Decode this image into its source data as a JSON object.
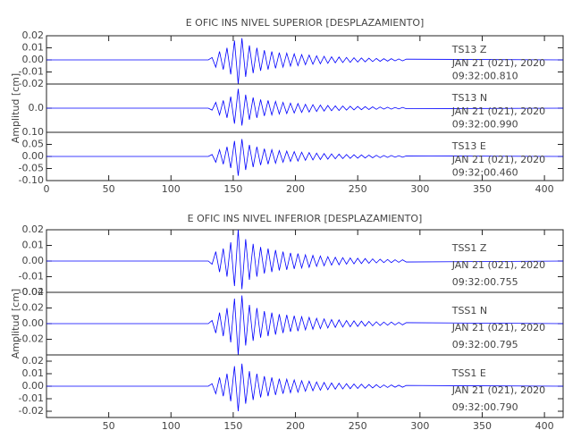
{
  "chart_data": [
    {
      "type": "line",
      "title": "E OFIC INS NIVEL SUPERIOR [DESPLAZAMIENTO]",
      "ylabel": "Amplitud [cm]",
      "xlim": [
        0,
        415
      ],
      "xticks": [
        0,
        50,
        100,
        150,
        200,
        250,
        300,
        350,
        400
      ],
      "x": [
        0,
        130,
        133,
        136,
        139,
        142,
        145,
        148,
        151,
        154,
        157,
        160,
        163,
        166,
        169,
        172,
        175,
        178,
        181,
        184,
        187,
        190,
        193,
        196,
        199,
        202,
        205,
        208,
        211,
        214,
        217,
        220,
        223,
        226,
        229,
        232,
        235,
        238,
        241,
        244,
        247,
        250,
        253,
        256,
        259,
        262,
        265,
        268,
        271,
        274,
        277,
        280,
        283,
        286,
        289,
        415
      ],
      "panels": [
        {
          "label": "TS13   Z",
          "date": "JAN 21 (021), 2020",
          "time": "09:32:00.810",
          "color": "#0000ff",
          "ylim": [
            -0.02,
            0.02
          ],
          "yticks": [
            0.02,
            0.01,
            {
              "value": 0,
              "label": "0.00"
            },
            -0.01,
            -0.02
          ],
          "values": [
            0,
            0,
            0.002,
            -0.006,
            0.007,
            -0.008,
            0.01,
            -0.012,
            0.016,
            -0.02,
            0.018,
            -0.014,
            0.012,
            -0.011,
            0.01,
            -0.009,
            0.008,
            -0.008,
            0.007,
            -0.007,
            0.006,
            -0.006,
            0.0056,
            -0.0052,
            0.005,
            -0.0048,
            0.0044,
            -0.004,
            0.004,
            -0.0036,
            0.0034,
            -0.0032,
            0.003,
            -0.0028,
            0.0026,
            -0.0024,
            0.0024,
            -0.0022,
            0.002,
            -0.002,
            0.0018,
            -0.0018,
            0.0016,
            -0.0016,
            0.0014,
            -0.0014,
            0.0012,
            -0.0012,
            0.001,
            -0.001,
            0.001,
            -0.0008,
            0.0008,
            -0.0008,
            0.0006,
            0
          ]
        },
        {
          "label": "TS13   N",
          "date": "JAN 21 (021), 2020",
          "time": "09:32:00.990",
          "color": "#0000ff",
          "ylim": [
            -0.1,
            0.1
          ],
          "yticks": [
            {
              "value": 0,
              "label": "0.0"
            }
          ],
          "values": [
            0,
            0,
            -0.008,
            0.024,
            -0.028,
            0.032,
            -0.04,
            0.048,
            -0.064,
            0.08,
            -0.072,
            0.056,
            -0.048,
            0.044,
            -0.04,
            0.036,
            -0.032,
            0.032,
            -0.028,
            0.028,
            -0.024,
            0.024,
            -0.0224,
            0.0208,
            -0.02,
            0.0192,
            -0.0176,
            0.016,
            -0.016,
            0.0144,
            -0.0136,
            0.0128,
            -0.012,
            0.0112,
            -0.0104,
            0.0096,
            -0.0096,
            0.0088,
            -0.008,
            0.008,
            -0.0072,
            0.0072,
            -0.0064,
            0.0064,
            -0.0056,
            0.0056,
            -0.0048,
            0.0048,
            -0.004,
            0.004,
            -0.004,
            0.0032,
            -0.0032,
            0.0032,
            -0.0024,
            0
          ]
        },
        {
          "label": "TS13   E",
          "date": "JAN 21 (021), 2020",
          "time": "09:32:00.460",
          "color": "#0000ff",
          "ylim": [
            -0.1,
            0.1
          ],
          "yticks": [
            {
              "value": 0.1,
              "label": "0.10"
            },
            0.05,
            {
              "value": 0,
              "label": "0.00"
            },
            -0.05,
            {
              "value": -0.1,
              "label": "-0.10"
            }
          ],
          "values": [
            0,
            0,
            0.008,
            -0.024,
            0.028,
            -0.032,
            0.04,
            -0.048,
            0.064,
            -0.08,
            0.072,
            -0.056,
            0.048,
            -0.044,
            0.04,
            -0.036,
            0.032,
            -0.032,
            0.028,
            -0.028,
            0.024,
            -0.024,
            0.0224,
            -0.0208,
            0.02,
            -0.0192,
            0.0176,
            -0.016,
            0.016,
            -0.0144,
            0.0136,
            -0.0128,
            0.012,
            -0.0112,
            0.0104,
            -0.0096,
            0.0096,
            -0.0088,
            0.008,
            -0.008,
            0.0072,
            -0.0072,
            0.0064,
            -0.0064,
            0.0056,
            -0.0056,
            0.0048,
            -0.0048,
            0.004,
            -0.004,
            0.004,
            -0.0032,
            0.0032,
            -0.0032,
            0.0024,
            0
          ]
        }
      ]
    },
    {
      "type": "line",
      "title": "E OFIC INS NIVEL INFERIOR [DESPLAZAMIENTO]",
      "ylabel": "Amplitud [cm]",
      "xlim": [
        0,
        415
      ],
      "xticks": [
        50,
        100,
        150,
        200,
        250,
        300,
        350,
        400
      ],
      "x": [
        0,
        130,
        133,
        136,
        139,
        142,
        145,
        148,
        151,
        154,
        157,
        160,
        163,
        166,
        169,
        172,
        175,
        178,
        181,
        184,
        187,
        190,
        193,
        196,
        199,
        202,
        205,
        208,
        211,
        214,
        217,
        220,
        223,
        226,
        229,
        232,
        235,
        238,
        241,
        244,
        247,
        250,
        253,
        256,
        259,
        262,
        265,
        268,
        271,
        274,
        277,
        280,
        283,
        286,
        289,
        415
      ],
      "panels": [
        {
          "label": "TSS1   Z",
          "date": "JAN 21 (021), 2020",
          "time": "09:32:00.755",
          "color": "#0000ff",
          "ylim": [
            -0.02,
            0.02
          ],
          "yticks": [
            0.02,
            0.01,
            {
              "value": 0,
              "label": "0.00"
            },
            -0.01,
            -0.02
          ],
          "values": [
            0,
            0,
            -0.002,
            0.006,
            -0.007,
            0.008,
            -0.01,
            0.012,
            -0.016,
            0.02,
            -0.018,
            0.014,
            -0.012,
            0.011,
            -0.01,
            0.009,
            -0.008,
            0.008,
            -0.007,
            0.007,
            -0.006,
            0.006,
            -0.0056,
            0.0052,
            -0.005,
            0.0048,
            -0.0044,
            0.004,
            -0.004,
            0.0036,
            -0.0034,
            0.0032,
            -0.003,
            0.0028,
            -0.0026,
            0.0024,
            -0.0024,
            0.0022,
            -0.002,
            0.002,
            -0.0018,
            0.0018,
            -0.0016,
            0.0016,
            -0.0014,
            0.0014,
            -0.0012,
            0.0012,
            -0.001,
            0.001,
            -0.001,
            0.0008,
            -0.0008,
            0.0008,
            -0.0006,
            0
          ]
        },
        {
          "label": "TSS1   N",
          "date": "JAN 21 (021), 2020",
          "time": "09:32:00.795",
          "color": "#0000ff",
          "ylim": [
            -0.04,
            0.04
          ],
          "yticks": [
            0.04,
            0.02,
            {
              "value": 0,
              "label": "0.00"
            },
            -0.02
          ],
          "values": [
            0,
            0,
            0.004,
            -0.012,
            0.014,
            -0.016,
            0.02,
            -0.024,
            0.032,
            -0.04,
            0.036,
            -0.028,
            0.024,
            -0.022,
            0.02,
            -0.018,
            0.016,
            -0.016,
            0.014,
            -0.014,
            0.012,
            -0.012,
            0.0112,
            -0.0104,
            0.01,
            -0.0096,
            0.0088,
            -0.008,
            0.008,
            -0.0072,
            0.0068,
            -0.0064,
            0.006,
            -0.0056,
            0.0052,
            -0.0048,
            0.0048,
            -0.0044,
            0.004,
            -0.004,
            0.0036,
            -0.0036,
            0.0032,
            -0.0032,
            0.0028,
            -0.0028,
            0.0024,
            -0.0024,
            0.002,
            -0.002,
            0.002,
            -0.0016,
            0.0016,
            -0.0016,
            0.0012,
            0
          ]
        },
        {
          "label": "TSS1   E",
          "date": "JAN 21 (021), 2020",
          "time": "09:32:00.790",
          "color": "#0000ff",
          "ylim": [
            -0.025,
            0.025
          ],
          "yticks": [
            0.02,
            0.01,
            {
              "value": 0,
              "label": "0.00"
            },
            -0.01,
            -0.02
          ],
          "values": [
            0,
            0,
            0.002,
            -0.006,
            0.007,
            -0.008,
            0.01,
            -0.012,
            0.016,
            -0.02,
            0.018,
            -0.014,
            0.012,
            -0.011,
            0.01,
            -0.009,
            0.008,
            -0.008,
            0.007,
            -0.007,
            0.006,
            -0.006,
            0.0056,
            -0.0052,
            0.005,
            -0.0048,
            0.0044,
            -0.004,
            0.004,
            -0.0036,
            0.0034,
            -0.0032,
            0.003,
            -0.0028,
            0.0026,
            -0.0024,
            0.0024,
            -0.0022,
            0.002,
            -0.002,
            0.0018,
            -0.0018,
            0.0016,
            -0.0016,
            0.0014,
            -0.0014,
            0.0012,
            -0.0012,
            0.001,
            -0.001,
            0.001,
            -0.0008,
            0.0008,
            -0.0008,
            0.0006,
            0
          ]
        }
      ]
    }
  ]
}
